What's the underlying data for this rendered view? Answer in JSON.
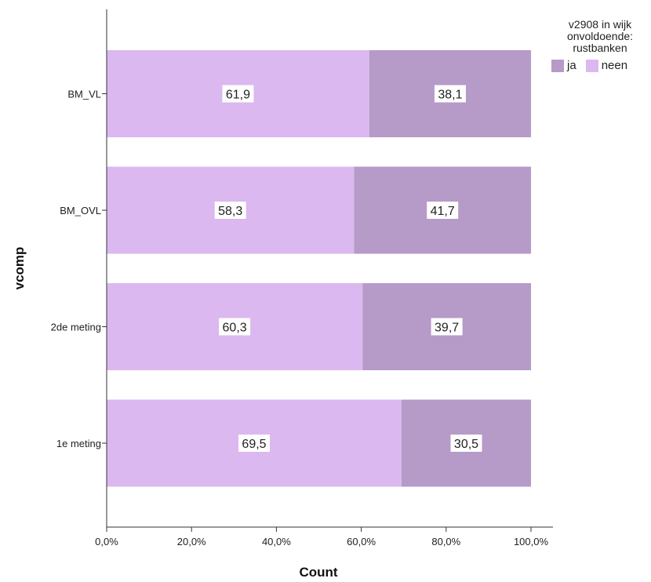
{
  "chart_data": {
    "type": "bar",
    "orientation": "horizontal",
    "stacked": true,
    "percent": true,
    "categories": [
      "BM_VL",
      "BM_OVL",
      "2de meting",
      "1e meting"
    ],
    "series": [
      {
        "name": "neen",
        "color": "#dbb8ef",
        "values": [
          61.9,
          58.3,
          60.3,
          69.5
        ]
      },
      {
        "name": "ja",
        "color": "#b69ac8",
        "values": [
          38.1,
          41.7,
          39.7,
          30.5
        ]
      }
    ],
    "data_labels": {
      "neen": [
        "61,9",
        "58,3",
        "60,3",
        "69,5"
      ],
      "ja": [
        "38,1",
        "41,7",
        "39,7",
        "30,5"
      ]
    },
    "xlabel": "Count",
    "ylabel": "vcomp",
    "xlim": [
      0,
      100
    ],
    "x_ticks": [
      "0,0%",
      "20,0%",
      "40,0%",
      "60,0%",
      "80,0%",
      "100,0%"
    ],
    "grid": false,
    "legend": {
      "title": "v2908 in wijk onvoldoende: rustbanken",
      "title_lines": [
        "v2908 in wijk",
        "onvoldoende:",
        "rustbanken"
      ],
      "placement": "top-right",
      "items": [
        {
          "label": "ja",
          "color": "#b69ac8"
        },
        {
          "label": "neen",
          "color": "#dbb8ef"
        }
      ]
    }
  }
}
